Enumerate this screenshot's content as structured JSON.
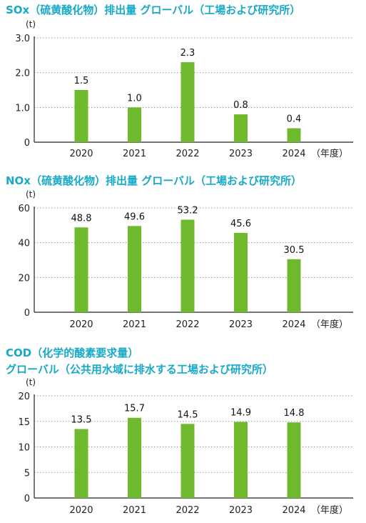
{
  "colors": {
    "title": "#19a9c8",
    "bar": "#6fb92c",
    "grid": "#999999",
    "axis": "#222222"
  },
  "chart_data": [
    {
      "type": "bar",
      "title": "SOx（硫黄酸化物）排出量 グローバル（工場および研究所）",
      "unit": "(t)",
      "categories": [
        "2020",
        "2021",
        "2022",
        "2023",
        "2024"
      ],
      "category_suffix": "（年度）",
      "values": [
        1.5,
        1.0,
        2.3,
        0.8,
        0.4
      ],
      "value_labels": [
        "1.5",
        "1.0",
        "2.3",
        "0.8",
        "0.4"
      ],
      "ylim": [
        0,
        3.0
      ],
      "yticks": [
        0,
        1.0,
        2.0,
        3.0
      ],
      "ytick_labels": [
        "0",
        "1.0",
        "2.0",
        "3.0"
      ],
      "grid": true
    },
    {
      "type": "bar",
      "title": "NOx（硫黄酸化物）排出量 グローバル（工場および研究所）",
      "unit": "(t)",
      "categories": [
        "2020",
        "2021",
        "2022",
        "2023",
        "2024"
      ],
      "category_suffix": "（年度）",
      "values": [
        48.8,
        49.6,
        53.2,
        45.6,
        30.5
      ],
      "value_labels": [
        "48.8",
        "49.6",
        "53.2",
        "45.6",
        "30.5"
      ],
      "ylim": [
        0,
        60
      ],
      "yticks": [
        0,
        20,
        40,
        60
      ],
      "ytick_labels": [
        "0",
        "20",
        "40",
        "60"
      ],
      "grid": true
    },
    {
      "type": "bar",
      "title": "COD（化学的酸素要求量）",
      "title_line2": "グローバル（公共用水域に排水する工場および研究所）",
      "unit": "(t)",
      "categories": [
        "2020",
        "2021",
        "2022",
        "2023",
        "2024"
      ],
      "category_suffix": "（年度）",
      "values": [
        13.5,
        15.7,
        14.5,
        14.9,
        14.8
      ],
      "value_labels": [
        "13.5",
        "15.7",
        "14.5",
        "14.9",
        "14.8"
      ],
      "ylim": [
        0,
        20
      ],
      "yticks": [
        0,
        5,
        10,
        15,
        20
      ],
      "ytick_labels": [
        "0",
        "5",
        "10",
        "15",
        "20"
      ],
      "grid": true
    }
  ]
}
